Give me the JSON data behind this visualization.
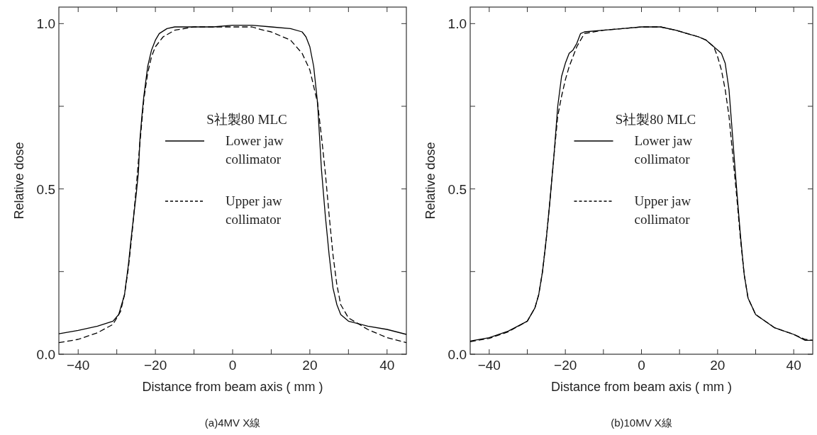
{
  "chart_data": [
    {
      "type": "line",
      "xlabel": "Distance from beam axis ( mm )",
      "ylabel": "Relative dose",
      "legend_title": "S社製80 MLC",
      "legend": "center",
      "annotations": [
        "(a)4MV X線"
      ],
      "xlim": [
        -45,
        45
      ],
      "ylim": [
        0,
        1.05
      ],
      "xticks": [
        {
          "value": -40,
          "label": "−40"
        },
        {
          "value": -30,
          "label": null
        },
        {
          "value": -20,
          "label": "−20"
        },
        {
          "value": -10,
          "label": null
        },
        0,
        {
          "value": 10,
          "label": null
        },
        20,
        {
          "value": 30,
          "label": null
        },
        40
      ],
      "yticks": [
        {
          "value": 0,
          "label": "0.0"
        },
        {
          "value": 0.25,
          "label": null
        },
        0.5,
        {
          "value": 0.75,
          "label": null
        },
        {
          "value": 1,
          "label": "1.0"
        }
      ],
      "series": [
        {
          "name": "Lower jaw collimator",
          "color": "#000000",
          "line_style": "solid",
          "x": [
            -45,
            -40,
            -35,
            -31,
            -29.5,
            -28,
            -27,
            -26,
            -25,
            -24.4,
            -24,
            -23.5,
            -23,
            -22,
            -21,
            -20,
            -19,
            -17,
            -15,
            -10,
            -5,
            0,
            5,
            10,
            15,
            18,
            19,
            20,
            21,
            22,
            23,
            24,
            25,
            26,
            27,
            28,
            30,
            35,
            40,
            45
          ],
          "values": [
            0.062,
            0.072,
            0.085,
            0.1,
            0.12,
            0.18,
            0.27,
            0.38,
            0.48,
            0.55,
            0.65,
            0.72,
            0.78,
            0.87,
            0.92,
            0.95,
            0.97,
            0.985,
            0.99,
            0.99,
            0.99,
            0.995,
            0.995,
            0.99,
            0.985,
            0.975,
            0.96,
            0.93,
            0.87,
            0.76,
            0.56,
            0.42,
            0.3,
            0.2,
            0.15,
            0.12,
            0.1,
            0.085,
            0.075,
            0.06
          ]
        },
        {
          "name": "Upper jaw collimator",
          "color": "#000000",
          "line_style": "dashed",
          "x": [
            -45,
            -40,
            -35,
            -31,
            -29,
            -28,
            -27,
            -26,
            -25,
            -24,
            -23,
            -22,
            -21,
            -20,
            -18,
            -15,
            -10,
            0,
            5,
            8,
            10,
            15,
            18,
            20,
            22,
            23,
            24,
            25,
            26,
            27,
            28,
            30,
            35,
            40,
            45
          ],
          "values": [
            0.035,
            0.045,
            0.065,
            0.09,
            0.13,
            0.18,
            0.26,
            0.37,
            0.5,
            0.64,
            0.77,
            0.85,
            0.9,
            0.93,
            0.96,
            0.98,
            0.99,
            0.99,
            0.99,
            0.98,
            0.975,
            0.95,
            0.91,
            0.86,
            0.76,
            0.66,
            0.55,
            0.42,
            0.3,
            0.21,
            0.15,
            0.11,
            0.075,
            0.05,
            0.035
          ]
        }
      ]
    },
    {
      "type": "line",
      "xlabel": "Distance from beam axis ( mm )",
      "ylabel": "Relative dose",
      "legend_title": "S社製80 MLC",
      "legend": "center",
      "annotations": [
        "(b)10MV X線"
      ],
      "xlim": [
        -45,
        45
      ],
      "ylim": [
        0,
        1.05
      ],
      "xticks": [
        {
          "value": -40,
          "label": "−40"
        },
        {
          "value": -30,
          "label": null
        },
        {
          "value": -20,
          "label": "−20"
        },
        {
          "value": -10,
          "label": null
        },
        0,
        {
          "value": 10,
          "label": null
        },
        20,
        {
          "value": 30,
          "label": null
        },
        40
      ],
      "yticks": [
        {
          "value": 0,
          "label": "0.0"
        },
        {
          "value": 0.25,
          "label": null
        },
        0.5,
        {
          "value": 0.75,
          "label": null
        },
        {
          "value": 1,
          "label": "1.0"
        }
      ],
      "series": [
        {
          "name": "Lower jaw collimator",
          "color": "#000000",
          "line_style": "solid",
          "x": [
            -45,
            -40,
            -35,
            -30,
            -28,
            -27,
            -26,
            -25,
            -24,
            -23,
            -22,
            -21,
            -20,
            -19,
            -18,
            -17,
            -16,
            -15,
            -10,
            -5,
            0,
            5,
            9,
            12,
            15,
            17,
            19,
            21,
            22,
            23,
            24,
            25,
            26,
            27,
            28,
            30,
            35,
            40,
            43,
            45
          ],
          "values": [
            0.04,
            0.05,
            0.07,
            0.1,
            0.14,
            0.18,
            0.25,
            0.35,
            0.47,
            0.6,
            0.75,
            0.84,
            0.88,
            0.91,
            0.92,
            0.94,
            0.97,
            0.975,
            0.98,
            0.985,
            0.99,
            0.99,
            0.98,
            0.97,
            0.96,
            0.95,
            0.93,
            0.91,
            0.88,
            0.8,
            0.65,
            0.5,
            0.36,
            0.24,
            0.17,
            0.12,
            0.08,
            0.06,
            0.042,
            0.042
          ]
        },
        {
          "name": "Upper jaw collimator",
          "color": "#000000",
          "line_style": "dashed",
          "x": [
            -45,
            -40,
            -35,
            -30,
            -28,
            -27,
            -26,
            -25,
            -24,
            -23,
            -22,
            -21,
            -20,
            -19,
            -18,
            -17,
            -16,
            -15,
            -10,
            -5,
            0,
            5,
            9,
            12,
            15,
            17,
            19,
            20,
            21,
            22,
            23,
            24,
            25,
            26,
            27,
            28,
            30,
            35,
            40,
            43,
            45
          ],
          "values": [
            0.038,
            0.048,
            0.068,
            0.1,
            0.14,
            0.18,
            0.25,
            0.35,
            0.47,
            0.6,
            0.72,
            0.78,
            0.83,
            0.87,
            0.9,
            0.93,
            0.95,
            0.97,
            0.98,
            0.985,
            0.99,
            0.99,
            0.98,
            0.97,
            0.96,
            0.95,
            0.93,
            0.9,
            0.86,
            0.8,
            0.72,
            0.6,
            0.48,
            0.35,
            0.24,
            0.17,
            0.12,
            0.08,
            0.06,
            0.045,
            0.042
          ]
        }
      ]
    }
  ]
}
